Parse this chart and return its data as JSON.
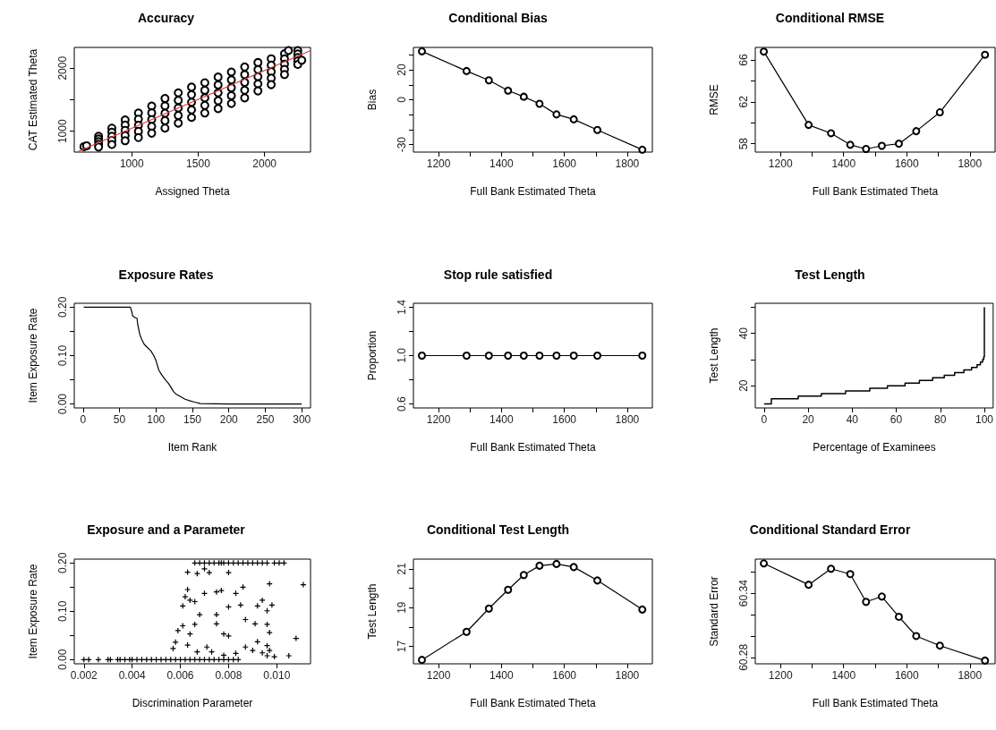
{
  "chart_data": [
    {
      "type": "scatter",
      "title": "Accuracy",
      "xlabel": "Assigned Theta",
      "ylabel": "CAT Estimated Theta",
      "xlim": [
        567,
        2346
      ],
      "ylim": [
        670,
        2330
      ],
      "xticks": [
        1000,
        1500,
        2000
      ],
      "yticks": [
        1000,
        {
          "value": 1500,
          "label": null
        },
        2000
      ],
      "series": [
        {
          "marker": "circle",
          "color": "#000000",
          "x": [
            640,
            660,
            750,
            750,
            750,
            750,
            750,
            850,
            850,
            850,
            850,
            850,
            950,
            950,
            950,
            950,
            950,
            1050,
            1050,
            1050,
            1050,
            1050,
            1150,
            1150,
            1150,
            1150,
            1150,
            1250,
            1250,
            1250,
            1250,
            1250,
            1350,
            1350,
            1350,
            1350,
            1350,
            1450,
            1450,
            1450,
            1450,
            1450,
            1550,
            1550,
            1550,
            1550,
            1550,
            1650,
            1650,
            1650,
            1650,
            1650,
            1750,
            1750,
            1750,
            1750,
            1750,
            1850,
            1850,
            1850,
            1850,
            1850,
            1950,
            1950,
            1950,
            1950,
            1950,
            2050,
            2050,
            2050,
            2050,
            2050,
            2150,
            2150,
            2150,
            2150,
            2150,
            2250,
            2250,
            2250,
            2250,
            2250,
            2180,
            2280
          ],
          "values": [
            756,
            770,
            920,
            878,
            835,
            792,
            750,
            1050,
            985,
            920,
            855,
            790,
            1180,
            1098,
            1015,
            932,
            850,
            1290,
            1192,
            1095,
            998,
            900,
            1400,
            1292,
            1185,
            1078,
            970,
            1520,
            1402,
            1285,
            1168,
            1050,
            1610,
            1490,
            1370,
            1250,
            1130,
            1700,
            1580,
            1460,
            1340,
            1220,
            1770,
            1650,
            1530,
            1410,
            1290,
            1860,
            1735,
            1610,
            1485,
            1360,
            1940,
            1815,
            1690,
            1565,
            1440,
            2020,
            1898,
            1775,
            1652,
            1530,
            2090,
            1978,
            1865,
            1752,
            1640,
            2150,
            2048,
            1945,
            1842,
            1740,
            2230,
            2148,
            2065,
            1982,
            1900,
            2280,
            2225,
            2170,
            2115,
            2060,
            2280,
            2127
          ]
        },
        {
          "type": "line",
          "marker": "none",
          "color": "#e03c3c",
          "x": [
            586,
            2346
          ],
          "values": [
            670,
            2280
          ]
        }
      ]
    },
    {
      "type": "line",
      "marker": "circle",
      "color": "#000000",
      "title": "Conditional Bias",
      "xlabel": "Full Bank Estimated Theta",
      "ylabel": "Bias",
      "xlim": [
        1120,
        1880
      ],
      "ylim": [
        -35,
        35
      ],
      "xticks": [
        1200,
        {
          "value": 1300,
          "label": null
        },
        1400,
        {
          "value": 1500,
          "label": null
        },
        1600,
        {
          "value": 1700,
          "label": null
        },
        1800
      ],
      "yticks": [
        -30,
        {
          "value": -20,
          "label": null
        },
        {
          "value": -10,
          "label": null
        },
        0,
        {
          "value": 10,
          "label": null
        },
        20,
        {
          "value": 30,
          "label": null
        }
      ],
      "x": [
        1147,
        1289,
        1360,
        1421,
        1471,
        1521,
        1575,
        1630,
        1705,
        1848
      ],
      "values": [
        32.4,
        19.2,
        13,
        6.1,
        2,
        -2.7,
        -9.8,
        -13.1,
        -20.2,
        -33.4
      ]
    },
    {
      "type": "line",
      "marker": "circle",
      "color": "#000000",
      "title": "Conditional RMSE",
      "xlabel": "Full Bank Estimated Theta",
      "ylabel": "RMSE",
      "xlim": [
        1120,
        1880
      ],
      "ylim": [
        57.2,
        67.2
      ],
      "xticks": [
        1200,
        {
          "value": 1300,
          "label": null
        },
        1400,
        {
          "value": 1500,
          "label": null
        },
        1600,
        {
          "value": 1700,
          "label": null
        },
        1800
      ],
      "yticks": [
        58,
        {
          "value": 60,
          "label": null
        },
        62,
        {
          "value": 64,
          "label": null
        },
        66
      ],
      "x": [
        1147,
        1289,
        1360,
        1421,
        1471,
        1521,
        1575,
        1630,
        1705,
        1848
      ],
      "values": [
        66.8,
        59.8,
        59.0,
        57.9,
        57.5,
        57.8,
        58.0,
        59.2,
        61.0,
        66.5
      ]
    },
    {
      "type": "line",
      "marker": "none",
      "color": "#000000",
      "title": "Exposure Rates",
      "xlabel": "Item Rank",
      "ylabel": "Item Exposure Rate",
      "xlim": [
        -12,
        312
      ],
      "ylim": [
        -0.008,
        0.208
      ],
      "xticks": [
        0,
        50,
        100,
        150,
        200,
        250,
        300
      ],
      "yticks": [
        {
          "value": 0,
          "label": "0.00"
        },
        {
          "value": 0.05,
          "label": null
        },
        {
          "value": 0.1,
          "label": "0.10"
        },
        {
          "value": 0.15,
          "label": null
        },
        {
          "value": 0.2,
          "label": "0.20"
        }
      ],
      "x": [
        1,
        65,
        67,
        68,
        70,
        72,
        74,
        75,
        77,
        78,
        80,
        84,
        88,
        93,
        97,
        100,
        102,
        104,
        108,
        113,
        117,
        120,
        124,
        128,
        133,
        140,
        146,
        153,
        161,
        200,
        250,
        300
      ],
      "values": [
        0.2,
        0.2,
        0.19,
        0.182,
        0.18,
        0.178,
        0.177,
        0.165,
        0.15,
        0.143,
        0.135,
        0.123,
        0.117,
        0.11,
        0.1,
        0.09,
        0.08,
        0.07,
        0.06,
        0.05,
        0.043,
        0.036,
        0.026,
        0.02,
        0.016,
        0.01,
        0.007,
        0.004,
        0.001,
        0,
        0,
        0
      ]
    },
    {
      "type": "line",
      "marker": "circle",
      "color": "#000000",
      "title": "Stop rule satisfied",
      "xlabel": "Full Bank Estimated Theta",
      "ylabel": "Proportion",
      "xlim": [
        1120,
        1880
      ],
      "ylim": [
        0.568,
        1.432
      ],
      "xticks": [
        1200,
        {
          "value": 1300,
          "label": null
        },
        1400,
        {
          "value": 1500,
          "label": null
        },
        1600,
        {
          "value": 1700,
          "label": null
        },
        1800
      ],
      "yticks": [
        0.6,
        {
          "value": 0.8,
          "label": null
        },
        {
          "value": 1,
          "label": "1.0"
        },
        {
          "value": 1.2,
          "label": null
        },
        1.4
      ],
      "x": [
        1147,
        1289,
        1360,
        1421,
        1471,
        1521,
        1575,
        1630,
        1705,
        1848
      ],
      "values": [
        1,
        1,
        1,
        1,
        1,
        1,
        1,
        1,
        1,
        1
      ]
    },
    {
      "type": "step",
      "color": "#000000",
      "title": "Test Length",
      "xlabel": "Percentage of Examinees",
      "ylabel": "Test Length",
      "xlim": [
        -4,
        104
      ],
      "ylim": [
        11.5,
        51.5
      ],
      "xticks": [
        0,
        20,
        40,
        60,
        80,
        100
      ],
      "yticks": [
        20,
        {
          "value": 30,
          "label": null
        },
        40,
        {
          "value": 50,
          "label": null
        }
      ],
      "x": [
        0,
        3.3,
        15.5,
        26,
        37,
        48,
        56,
        64,
        70.5,
        76.5,
        81.8,
        86.5,
        90.7,
        94.2,
        96.7,
        98.2,
        99.2,
        99.7,
        100
      ],
      "values": [
        13,
        15,
        16,
        17,
        18,
        19,
        20,
        21,
        22,
        23,
        24,
        25,
        26,
        27,
        28,
        29,
        30,
        31,
        50
      ]
    },
    {
      "type": "scatter",
      "marker": "cross",
      "color": "#000000",
      "title": "Exposure and a Parameter",
      "xlabel": "Discrimination Parameter",
      "ylabel": "Item Exposure Rate",
      "xlim": [
        0.0016,
        0.0114
      ],
      "ylim": [
        -0.0087,
        0.208
      ],
      "xticks": [
        0.002,
        0.004,
        0.006,
        0.008,
        {
          "value": 0.01,
          "label": "0.010"
        }
      ],
      "yticks": [
        {
          "value": 0,
          "label": "0.00"
        },
        {
          "value": 0.05,
          "label": null
        },
        {
          "value": 0.1,
          "label": "0.10"
        },
        {
          "value": 0.15,
          "label": null
        },
        {
          "value": 0.2,
          "label": "0.20"
        }
      ],
      "x": [
        0.002,
        0.0022,
        0.0026,
        0.003,
        0.0031,
        0.0034,
        0.0035,
        0.0037,
        0.0039,
        0.004,
        0.0042,
        0.0044,
        0.0046,
        0.0048,
        0.005,
        0.0052,
        0.0054,
        0.0056,
        0.0058,
        0.006,
        0.0062,
        0.0064,
        0.0066,
        0.0068,
        0.007,
        0.0072,
        0.0074,
        0.0076,
        0.0078,
        0.008,
        0.0082,
        0.0084,
        0.0066,
        0.0068,
        0.007,
        0.0072,
        0.0074,
        0.0076,
        0.0077,
        0.0078,
        0.008,
        0.0082,
        0.0084,
        0.0086,
        0.0088,
        0.009,
        0.0092,
        0.0094,
        0.0096,
        0.0099,
        0.0101,
        0.0103,
        0.0063,
        0.0067,
        0.007,
        0.0072,
        0.008,
        0.0063,
        0.0062,
        0.0061,
        0.0064,
        0.0066,
        0.007,
        0.0068,
        0.0075,
        0.0077,
        0.0075,
        0.0075,
        0.008,
        0.0083,
        0.0085,
        0.0086,
        0.0087,
        0.0094,
        0.0092,
        0.0091,
        0.0096,
        0.0098,
        0.0097,
        0.0096,
        0.0097,
        0.0111,
        0.0108,
        0.0105,
        0.0099,
        0.0096,
        0.0092,
        0.0087,
        0.008,
        0.0078,
        0.0066,
        0.0061,
        0.0059,
        0.0057,
        0.0058,
        0.0064,
        0.0063,
        0.0067,
        0.0071,
        0.0073,
        0.0078,
        0.0083,
        0.009,
        0.0094,
        0.0096,
        0.0097
      ],
      "values": [
        0,
        0,
        0,
        0,
        0,
        0,
        0,
        0,
        0,
        0,
        0,
        0,
        0,
        0,
        0,
        0,
        0,
        0,
        0,
        0,
        0,
        0,
        0,
        0,
        0,
        0,
        0,
        0,
        0,
        0,
        0,
        0,
        0.2,
        0.2,
        0.2,
        0.2,
        0.2,
        0.2,
        0.2,
        0.2,
        0.2,
        0.2,
        0.2,
        0.2,
        0.2,
        0.2,
        0.2,
        0.2,
        0.2,
        0.2,
        0.2,
        0.2,
        0.181,
        0.178,
        0.188,
        0.18,
        0.18,
        0.145,
        0.13,
        0.111,
        0.123,
        0.12,
        0.137,
        0.093,
        0.14,
        0.143,
        0.093,
        0.074,
        0.109,
        0.137,
        0.113,
        0.15,
        0.083,
        0.123,
        0.111,
        0.074,
        0.101,
        0.113,
        0.157,
        0.073,
        0.056,
        0.155,
        0.044,
        0.008,
        0.006,
        0.029,
        0.037,
        0.026,
        0.049,
        0.053,
        0.073,
        0.07,
        0.06,
        0.023,
        0.036,
        0.053,
        0.03,
        0.016,
        0.026,
        0.016,
        0.009,
        0.013,
        0.019,
        0.014,
        0.008,
        0.019
      ]
    },
    {
      "type": "line",
      "marker": "circle",
      "color": "#000000",
      "title": "Conditional Test Length",
      "xlabel": "Full Bank Estimated Theta",
      "ylabel": "Test Length",
      "xlim": [
        1120,
        1880
      ],
      "ylim": [
        16.1,
        21.5
      ],
      "xticks": [
        1200,
        {
          "value": 1300,
          "label": null
        },
        1400,
        {
          "value": 1500,
          "label": null
        },
        1600,
        {
          "value": 1700,
          "label": null
        },
        1800
      ],
      "yticks": [
        17,
        {
          "value": 18,
          "label": null
        },
        19,
        {
          "value": 20,
          "label": null
        },
        21
      ],
      "x": [
        1147,
        1289,
        1360,
        1421,
        1471,
        1521,
        1575,
        1630,
        1705,
        1848
      ],
      "values": [
        16.3,
        17.75,
        18.95,
        19.92,
        20.68,
        21.16,
        21.25,
        21.09,
        20.4,
        18.9
      ]
    },
    {
      "type": "line",
      "marker": "circle",
      "color": "#000000",
      "title": "Conditional Standard Error",
      "xlabel": "Full Bank Estimated Theta",
      "ylabel": "Standard Error",
      "xlim": [
        1120,
        1880
      ],
      "ylim": [
        60.274,
        60.372
      ],
      "xticks": [
        1200,
        {
          "value": 1300,
          "label": null
        },
        1400,
        {
          "value": 1500,
          "label": null
        },
        1600,
        {
          "value": 1700,
          "label": null
        },
        1800
      ],
      "yticks": [
        60.28,
        {
          "value": 60.3,
          "label": null
        },
        {
          "value": 60.32,
          "label": null
        },
        60.34,
        {
          "value": 60.36,
          "label": null
        }
      ],
      "x": [
        1147,
        1289,
        1360,
        1421,
        1471,
        1521,
        1575,
        1630,
        1705,
        1848
      ],
      "values": [
        60.368,
        60.348,
        60.363,
        60.358,
        60.332,
        60.337,
        60.318,
        60.3,
        60.291,
        60.277
      ]
    }
  ]
}
